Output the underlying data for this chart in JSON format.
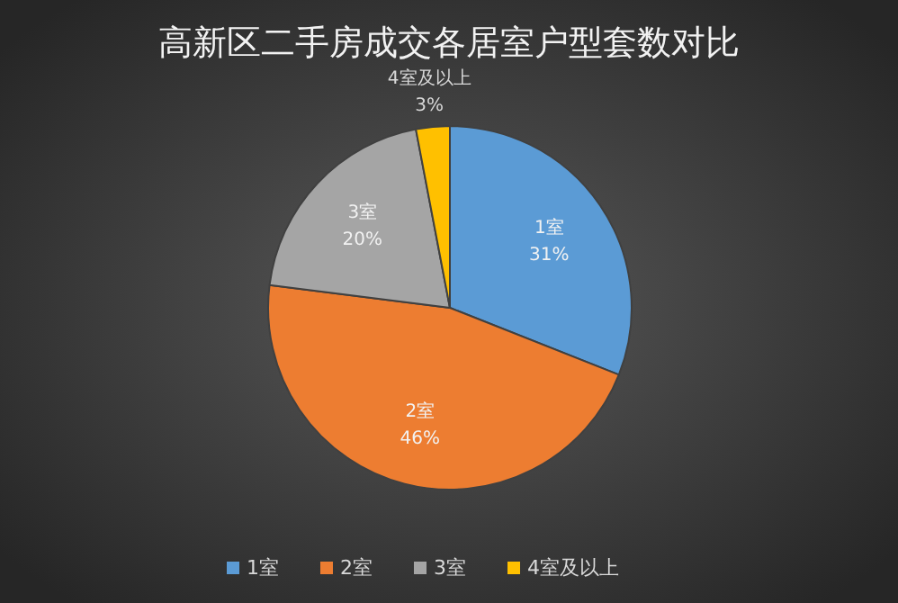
{
  "chart_data": {
    "type": "pie",
    "title": "高新区二手房成交各居室户型套数对比",
    "categories": [
      "1室",
      "2室",
      "3室",
      "4室及以上"
    ],
    "values": [
      31,
      46,
      20,
      3
    ],
    "value_labels": [
      "31%",
      "46%",
      "20%",
      "3%"
    ],
    "colors": [
      "#5b9bd5",
      "#ed7d31",
      "#a5a5a5",
      "#ffc000"
    ],
    "legend": "bottom"
  }
}
